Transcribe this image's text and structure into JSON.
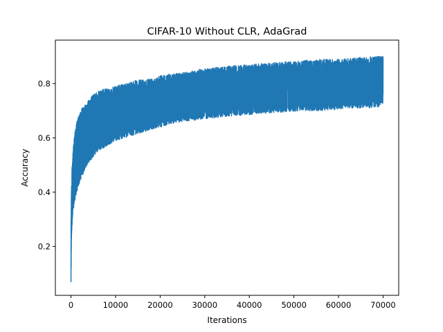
{
  "chart_data": {
    "type": "line",
    "title": "CIFAR-10 Without CLR, AdaGrad",
    "xlabel": "Iterations",
    "ylabel": "Accuracy",
    "xlim": [
      -3500,
      73500
    ],
    "ylim": [
      0.02,
      0.96
    ],
    "x_ticks": [
      0,
      10000,
      20000,
      30000,
      40000,
      50000,
      60000,
      70000
    ],
    "x_tick_labels": [
      "0",
      "10000",
      "20000",
      "30000",
      "40000",
      "50000",
      "60000",
      "70000"
    ],
    "y_ticks": [
      0.2,
      0.4,
      0.6,
      0.8
    ],
    "y_tick_labels": [
      "0.2",
      "0.4",
      "0.6",
      "0.8"
    ],
    "grid": false,
    "line_color": "#1f77b4",
    "series": [
      {
        "x": [
          0,
          100,
          200,
          400,
          600,
          800,
          1000,
          1500,
          2000,
          2500,
          3000,
          4000,
          5000,
          6000,
          7000,
          8000,
          10000,
          12000,
          14000,
          16000,
          18000,
          20000,
          22000,
          25000,
          28000,
          30000,
          33000,
          36000,
          40000,
          44000,
          48000,
          52000,
          56000,
          60000,
          64000,
          68000,
          70000
        ],
        "low": [
          0.06,
          0.22,
          0.27,
          0.31,
          0.34,
          0.36,
          0.38,
          0.41,
          0.44,
          0.46,
          0.48,
          0.51,
          0.53,
          0.55,
          0.56,
          0.57,
          0.59,
          0.6,
          0.61,
          0.62,
          0.63,
          0.64,
          0.65,
          0.66,
          0.665,
          0.67,
          0.675,
          0.68,
          0.685,
          0.69,
          0.695,
          0.7,
          0.7,
          0.705,
          0.71,
          0.71,
          0.72
        ],
        "high": [
          0.3,
          0.42,
          0.48,
          0.54,
          0.58,
          0.61,
          0.64,
          0.67,
          0.69,
          0.71,
          0.72,
          0.74,
          0.76,
          0.77,
          0.78,
          0.78,
          0.79,
          0.8,
          0.81,
          0.815,
          0.82,
          0.83,
          0.835,
          0.84,
          0.85,
          0.855,
          0.86,
          0.865,
          0.87,
          0.875,
          0.88,
          0.885,
          0.89,
          0.89,
          0.895,
          0.9,
          0.9
        ]
      }
    ]
  }
}
